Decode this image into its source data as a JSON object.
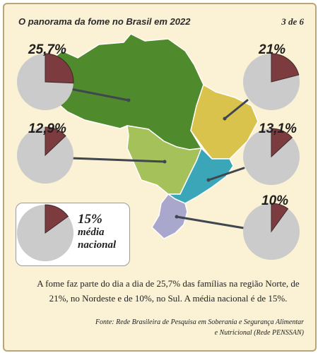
{
  "header": {
    "title": "O panorama da fome no Brasil em 2022",
    "page_indicator": "3 de 6"
  },
  "chart_data": {
    "type": "pie",
    "title": "O panorama da fome no Brasil em 2022",
    "series": [
      {
        "label": "25,7%",
        "value": 25.7,
        "color": "#4f8a2c"
      },
      {
        "label": "21%",
        "value": 21,
        "color": "#d9c34c"
      },
      {
        "label": "12,9%",
        "value": 12.9,
        "color": "#a5c25a"
      },
      {
        "label": "13,1%",
        "value": 13.1,
        "color": "#3aa6b8"
      },
      {
        "label": "10%",
        "value": 10,
        "color": "#a9a7cc"
      }
    ],
    "national": {
      "label": "15%",
      "value": 15,
      "text": "média nacional"
    },
    "slice_color": "#7b3b3f",
    "rest_color": "#cbcbcb"
  },
  "caption": "A fome faz parte do dia a dia de 25,7% das famílias na região Norte, de 21%, no Nordeste e de 10%, no Sul. A média nacional é de 15%.",
  "source": "Fonte: Rede Brasileira de Pesquisa em Soberania e Segurança Alimentar e Nutricional (Rede PENSSAN)"
}
